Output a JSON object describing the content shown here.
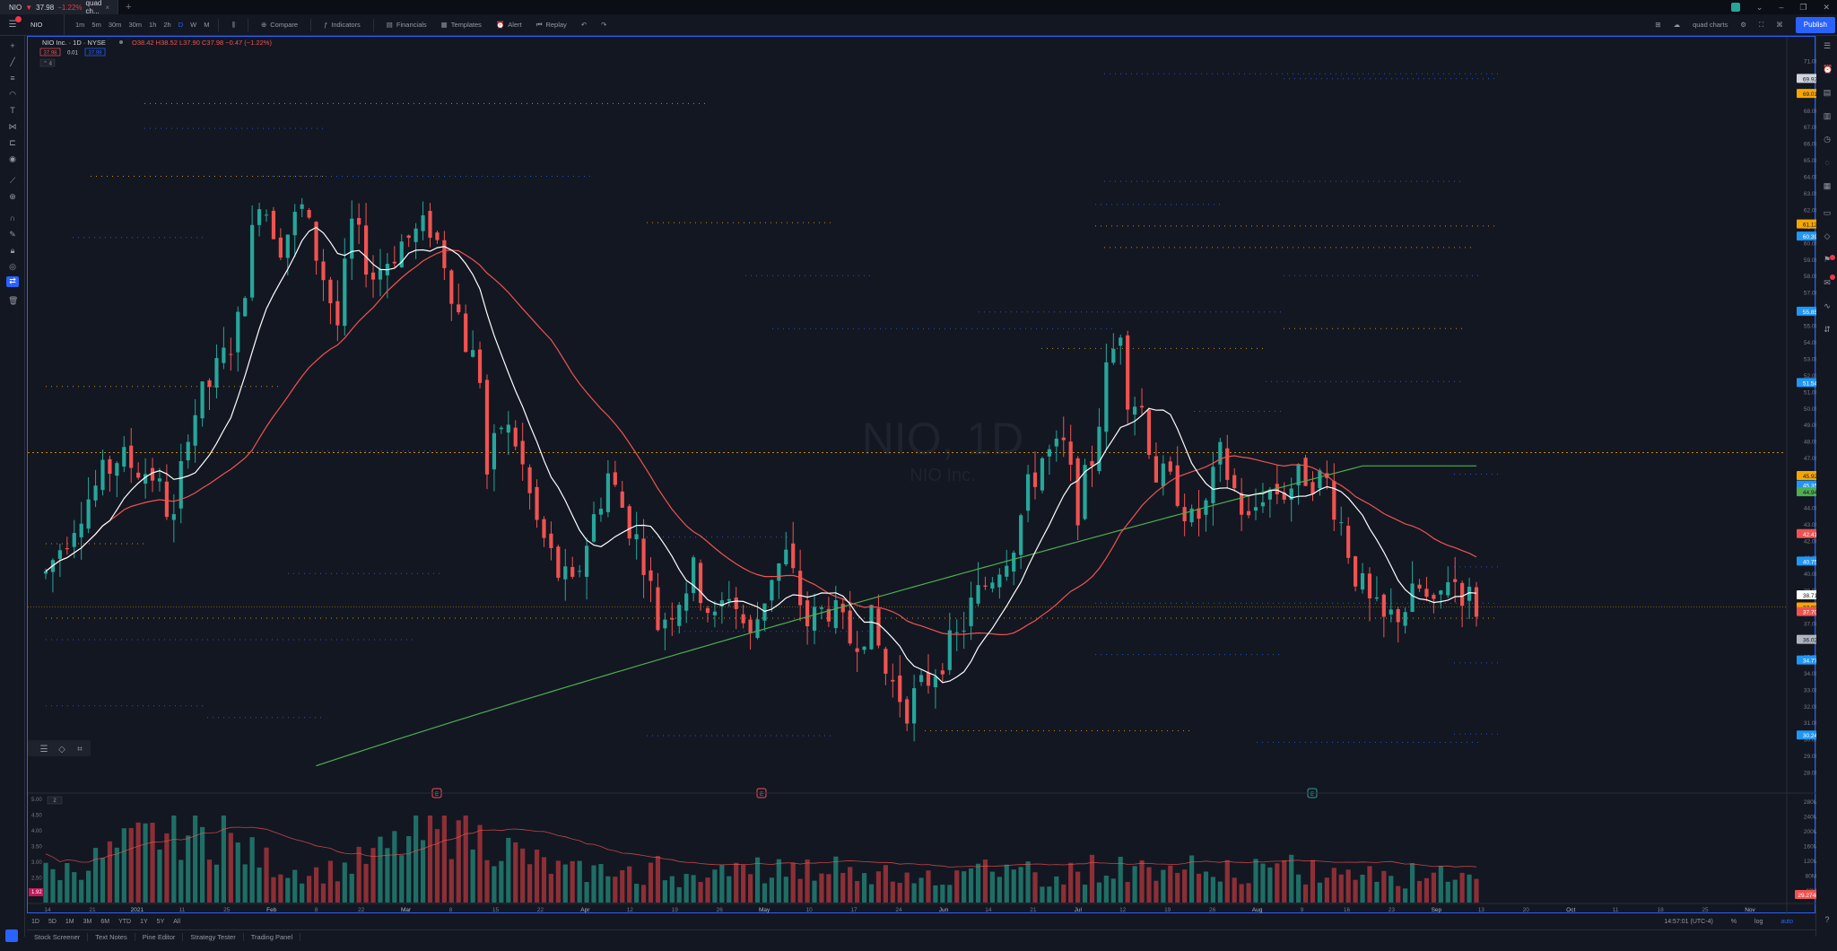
{
  "tab": {
    "symbol": "NIO",
    "price": "37.98",
    "change": "−1.22%",
    "label": "quad ch..."
  },
  "toolbar": {
    "symbol": "NIO",
    "intervals": [
      "1m",
      "5m",
      "30m",
      "30m",
      "1h",
      "2h",
      "D",
      "W",
      "M"
    ],
    "active_interval": "D",
    "compare": "Compare",
    "indicators": "Indicators",
    "financials": "Financials",
    "templates": "Templates",
    "alert": "Alert",
    "replay": "Replay",
    "layout": "quad charts",
    "publish": "Publish"
  },
  "legend": {
    "name": "NIO Inc.",
    "interval": "1D",
    "exchange": "NYSE",
    "ohlc": "O38.42 H38.52 L37.90 C37.98 −0.47 (−1.22%)",
    "bid": "37.98",
    "spread": "0.01",
    "ask": "37.99",
    "indicator_count": "4"
  },
  "watermark": {
    "symbol": "NIO, 1D",
    "name": "NIO Inc."
  },
  "colors": {
    "up": "#26a69a",
    "down": "#ef5350",
    "ema_fast": "#ffffff",
    "ema_mid": "#ef5350",
    "ema_slow": "#4caf50",
    "level_orange": "#f7a600",
    "level_blue": "#2962ff",
    "bg": "#131722"
  },
  "chart_data": {
    "type": "candlestick",
    "title": "NIO, 1D",
    "ylim": [
      27,
      72
    ],
    "y_ticks": [
      "71.00",
      "70.00",
      "69.00",
      "68.00",
      "67.00",
      "66.00",
      "65.00",
      "64.00",
      "63.00",
      "62.00",
      "61.00",
      "60.00",
      "59.00",
      "58.00",
      "57.00",
      "56.00",
      "55.00",
      "54.00",
      "53.00",
      "52.00",
      "51.00",
      "50.00",
      "49.00",
      "48.00",
      "47.00",
      "46.00",
      "45.00",
      "44.00",
      "43.00",
      "42.00",
      "41.00",
      "40.00",
      "39.00",
      "38.00",
      "37.00",
      "36.00",
      "35.00",
      "34.00",
      "33.00",
      "32.00",
      "31.00",
      "30.00",
      "29.00",
      "28.00"
    ],
    "x_ticks": [
      "14",
      "21",
      "2021",
      "11",
      "25",
      "Feb",
      "8",
      "22",
      "Mar",
      "8",
      "15",
      "22",
      "Apr",
      "12",
      "19",
      "26",
      "May",
      "10",
      "17",
      "24",
      "Jun",
      "14",
      "21",
      "Jul",
      "12",
      "19",
      "26",
      "Aug",
      "9",
      "16",
      "23",
      "Sep",
      "13",
      "20",
      "Oct",
      "11",
      "18",
      "25",
      "Nov"
    ],
    "price_tags": [
      {
        "text": "69.92",
        "value": 69.92,
        "color": "#d1d4dc",
        "dark": true
      },
      {
        "text": "69.01",
        "value": 69.01,
        "color": "#f7a600",
        "dark": true
      },
      {
        "text": "61.12",
        "value": 61.12,
        "color": "#f7a600",
        "dark": true
      },
      {
        "text": "60.39",
        "value": 60.39,
        "color": "#2196f3",
        "dark": false
      },
      {
        "text": "55.85",
        "value": 55.85,
        "color": "#2196f3",
        "dark": false
      },
      {
        "text": "51.54",
        "value": 51.54,
        "color": "#2196f3",
        "dark": false
      },
      {
        "text": "45.92",
        "value": 45.92,
        "color": "#f7a600",
        "dark": true
      },
      {
        "text": "45.35",
        "value": 45.35,
        "color": "#2196f3",
        "dark": false
      },
      {
        "text": "44.94",
        "value": 44.94,
        "color": "#4caf50",
        "dark": true
      },
      {
        "text": "42.41",
        "value": 42.41,
        "color": "#ef5350",
        "dark": false
      },
      {
        "text": "40.75",
        "value": 40.75,
        "color": "#2196f3",
        "dark": false
      },
      {
        "text": "38.71",
        "value": 38.71,
        "color": "#ffffff",
        "dark": true
      },
      {
        "text": "37.98",
        "value": 37.98,
        "color": "#f7a600",
        "dark": true
      },
      {
        "text": "37.70",
        "value": 37.7,
        "color": "#ef5350",
        "dark": false
      },
      {
        "text": "36.02",
        "value": 36.02,
        "color": "#b2b5be",
        "dark": true
      },
      {
        "text": "34.77",
        "value": 34.77,
        "color": "#2196f3",
        "dark": false
      },
      {
        "text": "30.24",
        "value": 30.24,
        "color": "#2196f3",
        "dark": false
      }
    ],
    "vol_ticks": [
      "280M",
      "240M",
      "200M",
      "160M",
      "120M",
      "80M",
      "40M"
    ],
    "vol_tag": {
      "text": "29.274M",
      "color": "#ef5350"
    },
    "vol_left": [
      "5.00",
      "4.50",
      "4.00",
      "3.50",
      "3.00",
      "2.50",
      "2.00",
      "1.92"
    ],
    "vol_indicator_label": "2",
    "earnings": [
      "E",
      "E",
      "E"
    ]
  },
  "timebar": {
    "ranges": [
      "1D",
      "5D",
      "1M",
      "3M",
      "6M",
      "YTD",
      "1Y",
      "5Y",
      "All"
    ],
    "time": "14:57:01 (UTC-4)",
    "percent": "%",
    "log": "log",
    "auto": "auto"
  },
  "bottom": {
    "tabs": [
      "Stock Screener",
      "Text Notes",
      "Pine Editor",
      "Strategy Tester",
      "Trading Panel"
    ]
  }
}
